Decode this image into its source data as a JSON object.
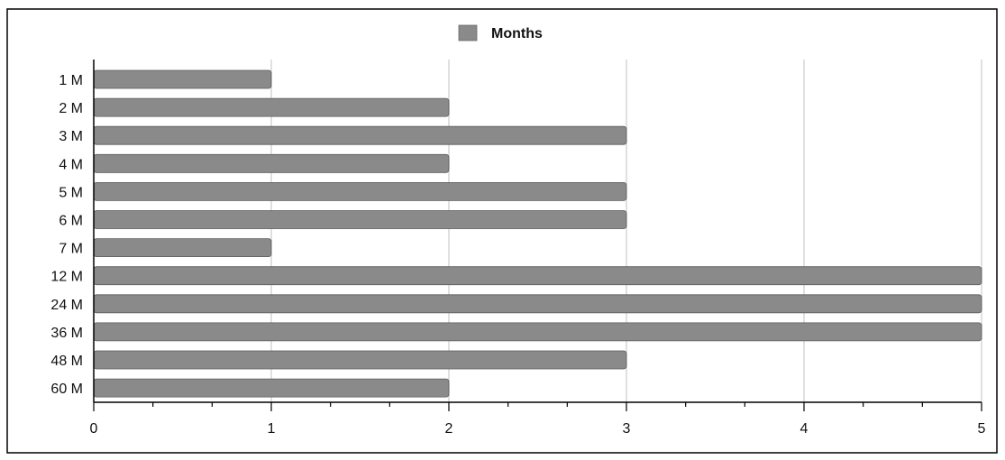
{
  "chart_data": {
    "type": "bar",
    "orientation": "horizontal",
    "categories": [
      "1 M",
      "2 M",
      "3 M",
      "4 M",
      "5 M",
      "6 M",
      "7 M",
      "12 M",
      "24 M",
      "36 M",
      "48 M",
      "60 M"
    ],
    "series": [
      {
        "name": "Months",
        "values": [
          1,
          2,
          3,
          2,
          3,
          3,
          1,
          5,
          5,
          5,
          3,
          2
        ],
        "color": "#8a8a8a"
      }
    ],
    "title": "",
    "xlabel": "",
    "ylabel": "",
    "xlim": [
      0,
      5
    ],
    "x_ticks": [
      "0",
      "1",
      "2",
      "3",
      "4",
      "5"
    ],
    "grid": "vertical",
    "legend": "top-center"
  }
}
